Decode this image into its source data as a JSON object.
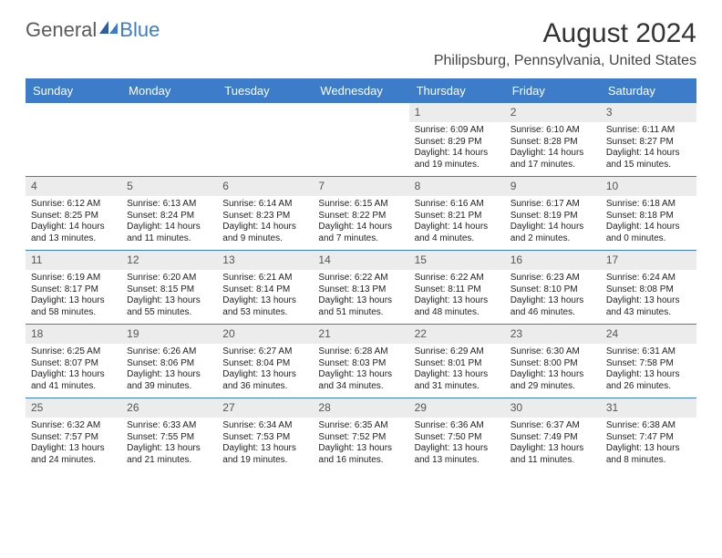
{
  "logo": {
    "text1": "General",
    "text2": "Blue"
  },
  "title": "August 2024",
  "location": "Philipsburg, Pennsylvania, United States",
  "colors": {
    "header_bg": "#3d7cc9",
    "header_text": "#ffffff",
    "daynum_bg": "#ececec",
    "rule": "#3d7cc9",
    "body_text": "#222222"
  },
  "day_labels": [
    "Sunday",
    "Monday",
    "Tuesday",
    "Wednesday",
    "Thursday",
    "Friday",
    "Saturday"
  ],
  "weeks": [
    [
      {
        "num": "",
        "lines": []
      },
      {
        "num": "",
        "lines": []
      },
      {
        "num": "",
        "lines": []
      },
      {
        "num": "",
        "lines": []
      },
      {
        "num": "1",
        "lines": [
          "Sunrise: 6:09 AM",
          "Sunset: 8:29 PM",
          "Daylight: 14 hours",
          "and 19 minutes."
        ]
      },
      {
        "num": "2",
        "lines": [
          "Sunrise: 6:10 AM",
          "Sunset: 8:28 PM",
          "Daylight: 14 hours",
          "and 17 minutes."
        ]
      },
      {
        "num": "3",
        "lines": [
          "Sunrise: 6:11 AM",
          "Sunset: 8:27 PM",
          "Daylight: 14 hours",
          "and 15 minutes."
        ]
      }
    ],
    [
      {
        "num": "4",
        "lines": [
          "Sunrise: 6:12 AM",
          "Sunset: 8:25 PM",
          "Daylight: 14 hours",
          "and 13 minutes."
        ]
      },
      {
        "num": "5",
        "lines": [
          "Sunrise: 6:13 AM",
          "Sunset: 8:24 PM",
          "Daylight: 14 hours",
          "and 11 minutes."
        ]
      },
      {
        "num": "6",
        "lines": [
          "Sunrise: 6:14 AM",
          "Sunset: 8:23 PM",
          "Daylight: 14 hours",
          "and 9 minutes."
        ]
      },
      {
        "num": "7",
        "lines": [
          "Sunrise: 6:15 AM",
          "Sunset: 8:22 PM",
          "Daylight: 14 hours",
          "and 7 minutes."
        ]
      },
      {
        "num": "8",
        "lines": [
          "Sunrise: 6:16 AM",
          "Sunset: 8:21 PM",
          "Daylight: 14 hours",
          "and 4 minutes."
        ]
      },
      {
        "num": "9",
        "lines": [
          "Sunrise: 6:17 AM",
          "Sunset: 8:19 PM",
          "Daylight: 14 hours",
          "and 2 minutes."
        ]
      },
      {
        "num": "10",
        "lines": [
          "Sunrise: 6:18 AM",
          "Sunset: 8:18 PM",
          "Daylight: 14 hours",
          "and 0 minutes."
        ]
      }
    ],
    [
      {
        "num": "11",
        "lines": [
          "Sunrise: 6:19 AM",
          "Sunset: 8:17 PM",
          "Daylight: 13 hours",
          "and 58 minutes."
        ]
      },
      {
        "num": "12",
        "lines": [
          "Sunrise: 6:20 AM",
          "Sunset: 8:15 PM",
          "Daylight: 13 hours",
          "and 55 minutes."
        ]
      },
      {
        "num": "13",
        "lines": [
          "Sunrise: 6:21 AM",
          "Sunset: 8:14 PM",
          "Daylight: 13 hours",
          "and 53 minutes."
        ]
      },
      {
        "num": "14",
        "lines": [
          "Sunrise: 6:22 AM",
          "Sunset: 8:13 PM",
          "Daylight: 13 hours",
          "and 51 minutes."
        ]
      },
      {
        "num": "15",
        "lines": [
          "Sunrise: 6:22 AM",
          "Sunset: 8:11 PM",
          "Daylight: 13 hours",
          "and 48 minutes."
        ]
      },
      {
        "num": "16",
        "lines": [
          "Sunrise: 6:23 AM",
          "Sunset: 8:10 PM",
          "Daylight: 13 hours",
          "and 46 minutes."
        ]
      },
      {
        "num": "17",
        "lines": [
          "Sunrise: 6:24 AM",
          "Sunset: 8:08 PM",
          "Daylight: 13 hours",
          "and 43 minutes."
        ]
      }
    ],
    [
      {
        "num": "18",
        "lines": [
          "Sunrise: 6:25 AM",
          "Sunset: 8:07 PM",
          "Daylight: 13 hours",
          "and 41 minutes."
        ]
      },
      {
        "num": "19",
        "lines": [
          "Sunrise: 6:26 AM",
          "Sunset: 8:06 PM",
          "Daylight: 13 hours",
          "and 39 minutes."
        ]
      },
      {
        "num": "20",
        "lines": [
          "Sunrise: 6:27 AM",
          "Sunset: 8:04 PM",
          "Daylight: 13 hours",
          "and 36 minutes."
        ]
      },
      {
        "num": "21",
        "lines": [
          "Sunrise: 6:28 AM",
          "Sunset: 8:03 PM",
          "Daylight: 13 hours",
          "and 34 minutes."
        ]
      },
      {
        "num": "22",
        "lines": [
          "Sunrise: 6:29 AM",
          "Sunset: 8:01 PM",
          "Daylight: 13 hours",
          "and 31 minutes."
        ]
      },
      {
        "num": "23",
        "lines": [
          "Sunrise: 6:30 AM",
          "Sunset: 8:00 PM",
          "Daylight: 13 hours",
          "and 29 minutes."
        ]
      },
      {
        "num": "24",
        "lines": [
          "Sunrise: 6:31 AM",
          "Sunset: 7:58 PM",
          "Daylight: 13 hours",
          "and 26 minutes."
        ]
      }
    ],
    [
      {
        "num": "25",
        "lines": [
          "Sunrise: 6:32 AM",
          "Sunset: 7:57 PM",
          "Daylight: 13 hours",
          "and 24 minutes."
        ]
      },
      {
        "num": "26",
        "lines": [
          "Sunrise: 6:33 AM",
          "Sunset: 7:55 PM",
          "Daylight: 13 hours",
          "and 21 minutes."
        ]
      },
      {
        "num": "27",
        "lines": [
          "Sunrise: 6:34 AM",
          "Sunset: 7:53 PM",
          "Daylight: 13 hours",
          "and 19 minutes."
        ]
      },
      {
        "num": "28",
        "lines": [
          "Sunrise: 6:35 AM",
          "Sunset: 7:52 PM",
          "Daylight: 13 hours",
          "and 16 minutes."
        ]
      },
      {
        "num": "29",
        "lines": [
          "Sunrise: 6:36 AM",
          "Sunset: 7:50 PM",
          "Daylight: 13 hours",
          "and 13 minutes."
        ]
      },
      {
        "num": "30",
        "lines": [
          "Sunrise: 6:37 AM",
          "Sunset: 7:49 PM",
          "Daylight: 13 hours",
          "and 11 minutes."
        ]
      },
      {
        "num": "31",
        "lines": [
          "Sunrise: 6:38 AM",
          "Sunset: 7:47 PM",
          "Daylight: 13 hours",
          "and 8 minutes."
        ]
      }
    ]
  ]
}
